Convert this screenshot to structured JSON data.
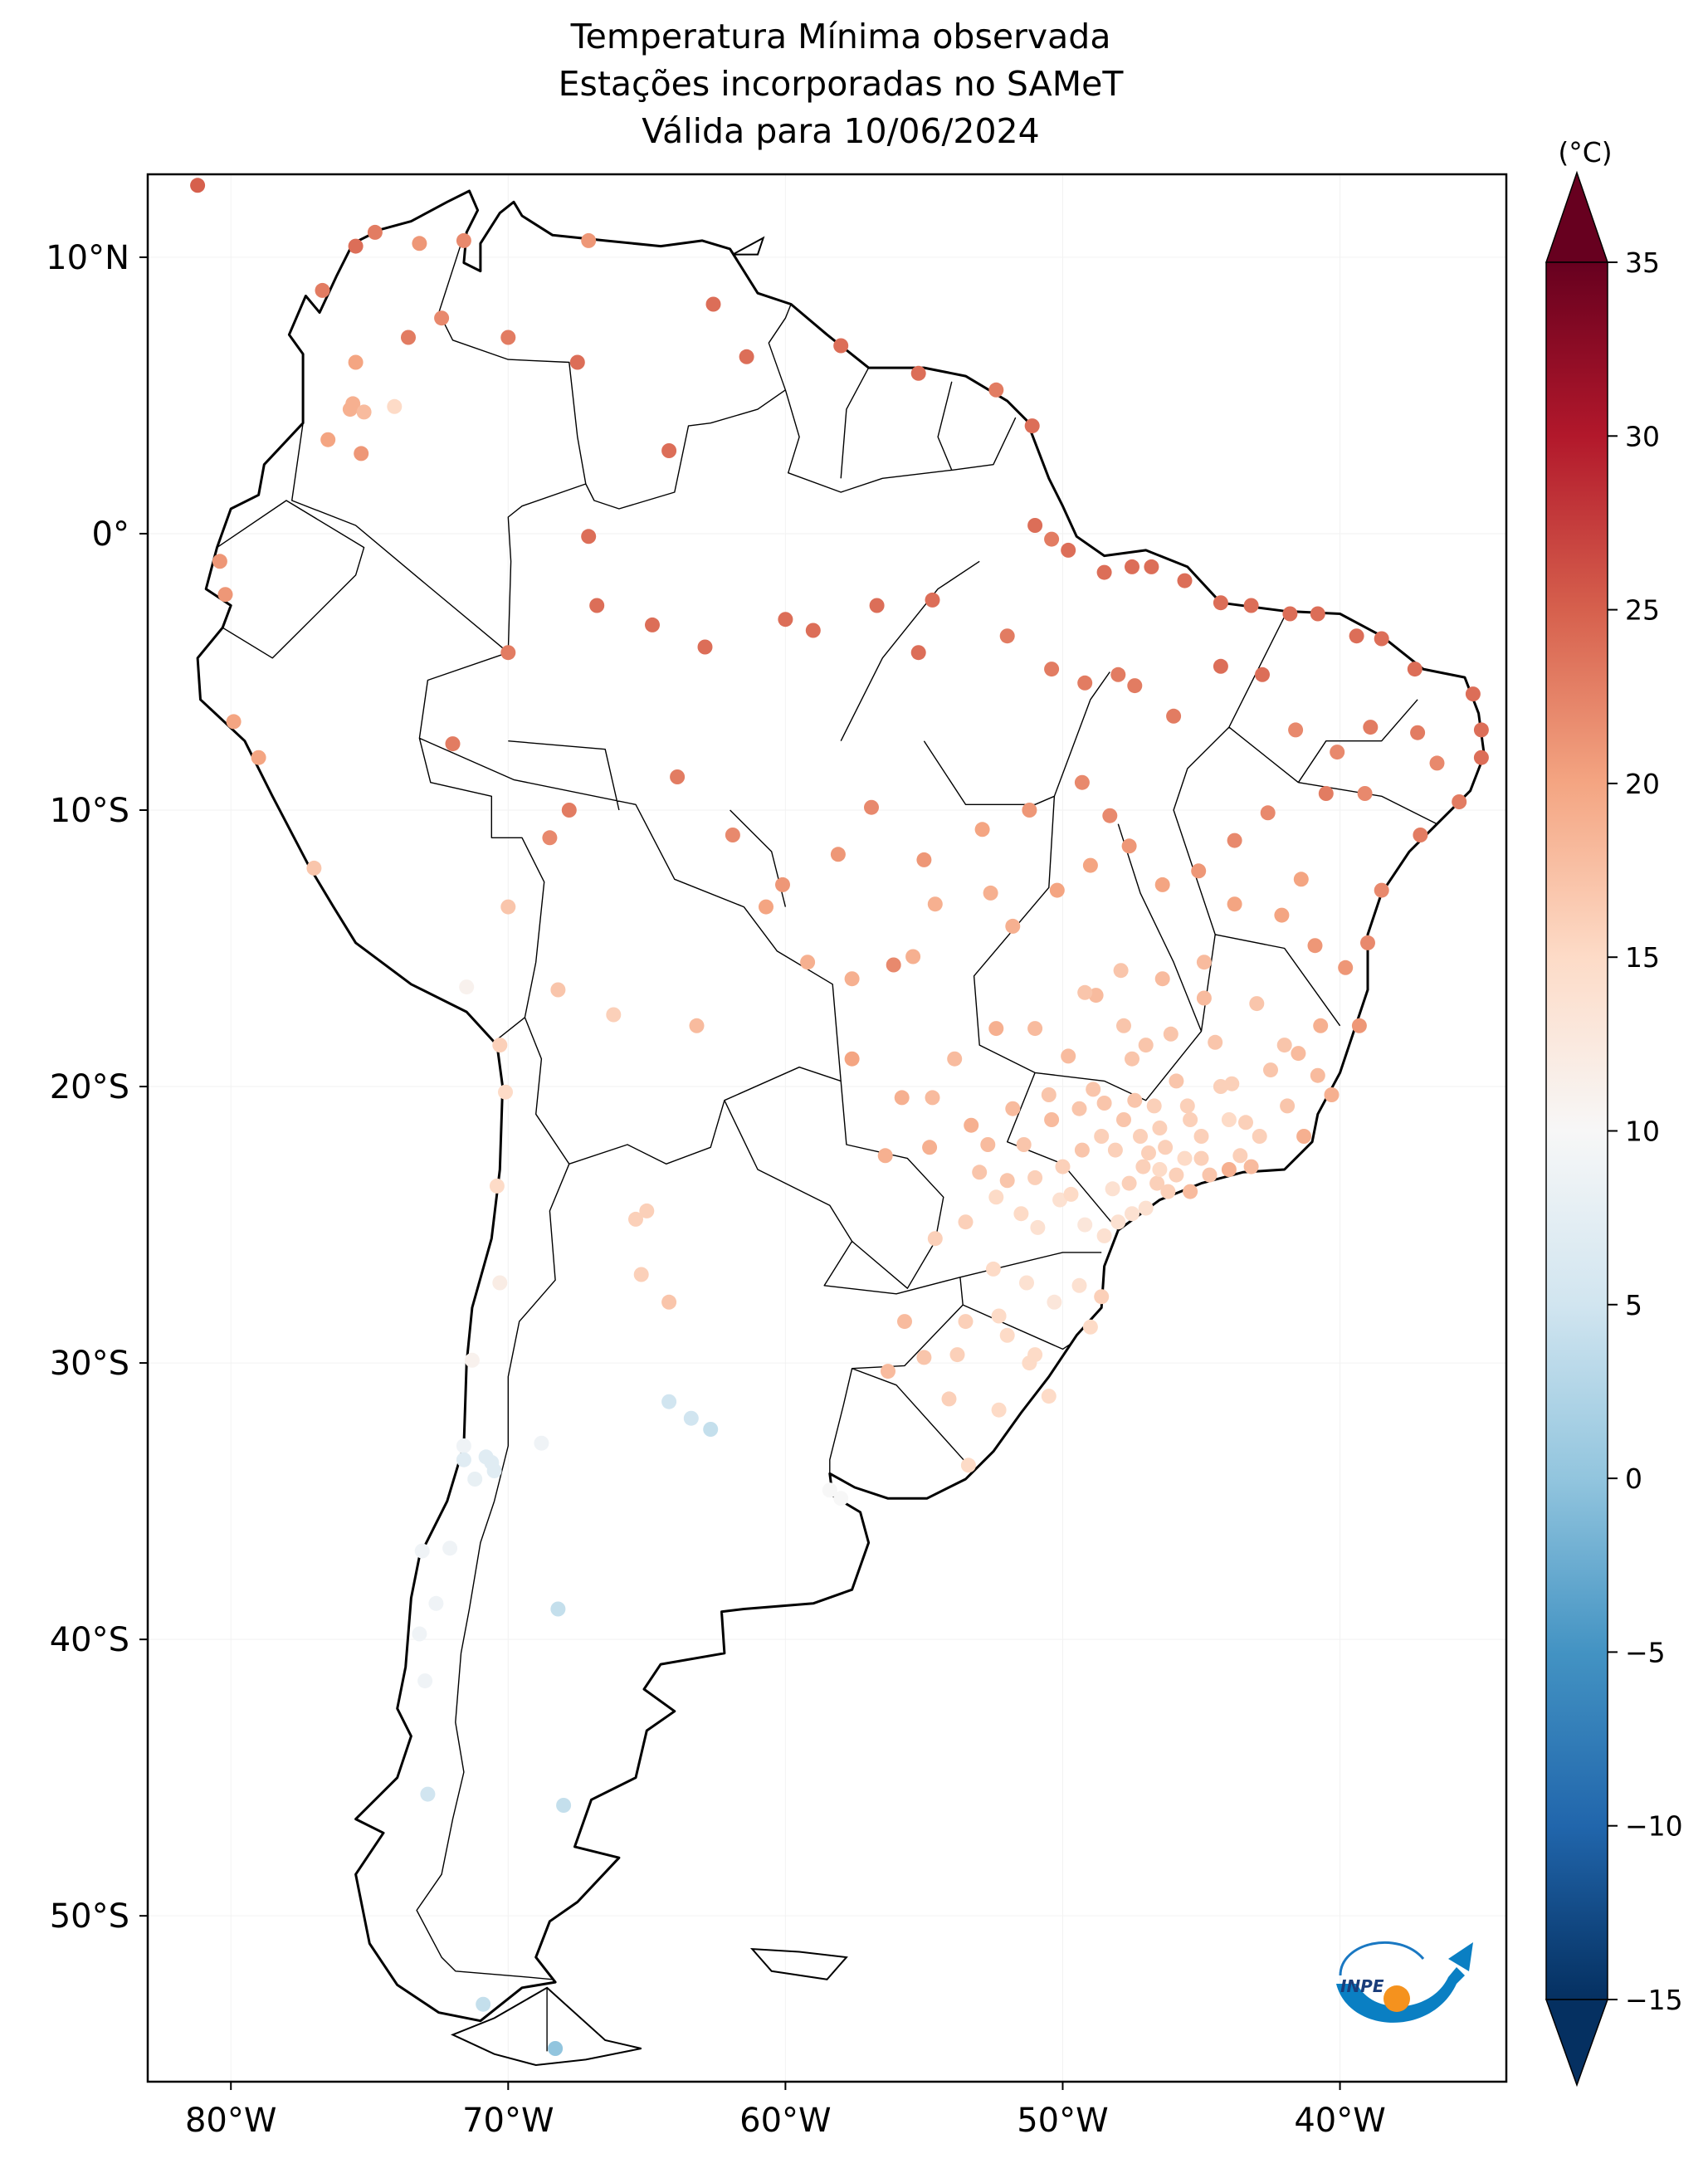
{
  "title": {
    "line1": "Temperatura Mínima observada",
    "line2": "Estações incorporadas no SAMeT",
    "line3": "Válida para 10/06/2024"
  },
  "map": {
    "lon_ticks": [
      {
        "lon": -80,
        "label": "80°W"
      },
      {
        "lon": -70,
        "label": "70°W"
      },
      {
        "lon": -60,
        "label": "60°W"
      },
      {
        "lon": -50,
        "label": "50°W"
      },
      {
        "lon": -40,
        "label": "40°W"
      }
    ],
    "lat_ticks": [
      {
        "lat": 10,
        "label": "10°N"
      },
      {
        "lat": 0,
        "label": "0°"
      },
      {
        "lat": -10,
        "label": "10°S"
      },
      {
        "lat": -20,
        "label": "20°S"
      },
      {
        "lat": -30,
        "label": "30°S"
      },
      {
        "lat": -40,
        "label": "40°S"
      },
      {
        "lat": -50,
        "label": "50°S"
      }
    ],
    "lon_range": [
      -83,
      -34
    ],
    "lat_range": [
      -56,
      13
    ]
  },
  "colorbar": {
    "unit": "(°C)",
    "min": -15,
    "max": 35,
    "extend": "both",
    "cmap": "RdBu_r",
    "ticks": [
      {
        "value": 35,
        "label": "35"
      },
      {
        "value": 30,
        "label": "30"
      },
      {
        "value": 25,
        "label": "25"
      },
      {
        "value": 20,
        "label": "20"
      },
      {
        "value": 15,
        "label": "15"
      },
      {
        "value": 10,
        "label": "10"
      },
      {
        "value": 5,
        "label": "5"
      },
      {
        "value": 0,
        "label": "0"
      },
      {
        "value": -5,
        "label": "−5"
      },
      {
        "value": -10,
        "label": "−10"
      },
      {
        "value": -15,
        "label": "−15"
      }
    ]
  },
  "logo": {
    "text": "INPE"
  },
  "chart_data": {
    "type": "scatter",
    "title": "Temperatura Mínima observada / Estações incorporadas no SAMeT / Válida para 10/06/2024",
    "x_unit": "longitude (°)",
    "y_unit": "latitude (°)",
    "value_unit": "°C",
    "points": [
      [
        -81.2,
        12.6,
        25
      ],
      [
        -75.5,
        10.4,
        24
      ],
      [
        -74.8,
        10.9,
        23
      ],
      [
        -73.2,
        10.5,
        21
      ],
      [
        -71.6,
        10.6,
        22
      ],
      [
        -67.1,
        10.6,
        21
      ],
      [
        -76.7,
        8.8,
        23
      ],
      [
        -73.6,
        7.1,
        23
      ],
      [
        -72.4,
        7.8,
        22
      ],
      [
        -70.0,
        7.1,
        23
      ],
      [
        -75.5,
        6.2,
        20
      ],
      [
        -75.6,
        4.7,
        19
      ],
      [
        -75.7,
        4.5,
        19
      ],
      [
        -75.2,
        4.4,
        18
      ],
      [
        -74.1,
        4.6,
        15
      ],
      [
        -76.5,
        3.4,
        20
      ],
      [
        -75.3,
        2.9,
        21
      ],
      [
        -67.5,
        6.2,
        24
      ],
      [
        -62.6,
        8.3,
        24
      ],
      [
        -61.4,
        6.4,
        24
      ],
      [
        -64.2,
        3.0,
        24
      ],
      [
        -58.0,
        6.8,
        24
      ],
      [
        -55.2,
        5.8,
        24
      ],
      [
        -52.4,
        5.2,
        23
      ],
      [
        -51.1,
        3.9,
        24
      ],
      [
        -51.0,
        0.3,
        24
      ],
      [
        -50.4,
        -0.2,
        23
      ],
      [
        -49.8,
        -0.6,
        24
      ],
      [
        -48.5,
        -1.4,
        24
      ],
      [
        -47.5,
        -1.2,
        24
      ],
      [
        -46.8,
        -1.2,
        24
      ],
      [
        -45.6,
        -1.7,
        24
      ],
      [
        -44.3,
        -2.5,
        24
      ],
      [
        -43.2,
        -2.6,
        24
      ],
      [
        -41.8,
        -2.9,
        24
      ],
      [
        -40.8,
        -2.9,
        24
      ],
      [
        -39.4,
        -3.7,
        24
      ],
      [
        -38.5,
        -3.8,
        24
      ],
      [
        -37.3,
        -4.9,
        24
      ],
      [
        -35.2,
        -5.8,
        24
      ],
      [
        -34.9,
        -7.1,
        24
      ],
      [
        -34.9,
        -8.1,
        24
      ],
      [
        -35.7,
        -9.7,
        23
      ],
      [
        -37.1,
        -10.9,
        23
      ],
      [
        -38.5,
        -12.9,
        22
      ],
      [
        -39.0,
        -14.8,
        22
      ],
      [
        -39.3,
        -17.8,
        21
      ],
      [
        -40.3,
        -20.3,
        19
      ],
      [
        -41.3,
        -21.8,
        19
      ],
      [
        -43.2,
        -22.9,
        18
      ],
      [
        -44.0,
        -23.0,
        19
      ],
      [
        -45.4,
        -23.8,
        18
      ],
      [
        -46.6,
        -23.5,
        16
      ],
      [
        -48.5,
        -25.4,
        14
      ],
      [
        -48.6,
        -27.6,
        16
      ],
      [
        -49.0,
        -28.7,
        15
      ],
      [
        -51.2,
        -30.0,
        15
      ],
      [
        -52.3,
        -31.7,
        15
      ],
      [
        -53.4,
        -33.7,
        15
      ],
      [
        -80.4,
        -1.0,
        21
      ],
      [
        -80.2,
        -2.2,
        21
      ],
      [
        -79.9,
        -6.8,
        20
      ],
      [
        -79.0,
        -8.1,
        20
      ],
      [
        -77.0,
        -12.1,
        17
      ],
      [
        -71.5,
        -16.4,
        11
      ],
      [
        -70.3,
        -18.5,
        16
      ],
      [
        -70.1,
        -20.2,
        15
      ],
      [
        -70.4,
        -23.6,
        15
      ],
      [
        -70.3,
        -27.1,
        12
      ],
      [
        -71.3,
        -29.9,
        11
      ],
      [
        -71.6,
        -33.0,
        9
      ],
      [
        -71.2,
        -34.2,
        8
      ],
      [
        -72.1,
        -36.7,
        9
      ],
      [
        -73.1,
        -36.8,
        9
      ],
      [
        -72.6,
        -38.7,
        9
      ],
      [
        -73.2,
        -39.8,
        9
      ],
      [
        -73.0,
        -41.5,
        9
      ],
      [
        -72.9,
        -45.6,
        5
      ],
      [
        -70.9,
        -53.2,
        4
      ],
      [
        -68.3,
        -54.8,
        0
      ],
      [
        -68.0,
        -46.0,
        4
      ],
      [
        -68.2,
        -38.9,
        4
      ],
      [
        -68.8,
        -32.9,
        9
      ],
      [
        -71.6,
        -33.5,
        7
      ],
      [
        -70.8,
        -33.4,
        7
      ],
      [
        -70.6,
        -33.6,
        7
      ],
      [
        -70.5,
        -33.9,
        7
      ],
      [
        -64.2,
        -31.4,
        5
      ],
      [
        -63.4,
        -32.0,
        5
      ],
      [
        -62.7,
        -32.4,
        4
      ],
      [
        -58.4,
        -34.6,
        10
      ],
      [
        -58.0,
        -34.9,
        10
      ],
      [
        -64.2,
        -27.8,
        17
      ],
      [
        -65.2,
        -26.8,
        16
      ],
      [
        -65.4,
        -24.8,
        16
      ],
      [
        -65.0,
        -24.5,
        16
      ],
      [
        -68.2,
        -16.5,
        17
      ],
      [
        -66.2,
        -17.4,
        16
      ],
      [
        -63.2,
        -17.8,
        18
      ],
      [
        -60.7,
        -13.5,
        20
      ],
      [
        -59.2,
        -15.5,
        19
      ],
      [
        -57.6,
        -16.1,
        19
      ],
      [
        -60.1,
        -12.7,
        21
      ],
      [
        -61.9,
        -10.9,
        22
      ],
      [
        -63.9,
        -8.8,
        23
      ],
      [
        -67.8,
        -10.0,
        23
      ],
      [
        -68.5,
        -11.0,
        22
      ],
      [
        -70.0,
        -13.5,
        17
      ],
      [
        -72.0,
        -7.6,
        23
      ],
      [
        -70.0,
        -4.3,
        23
      ],
      [
        -67.1,
        -0.1,
        24
      ],
      [
        -66.8,
        -2.6,
        24
      ],
      [
        -64.8,
        -3.3,
        24
      ],
      [
        -62.9,
        -4.1,
        24
      ],
      [
        -60.0,
        -3.1,
        24
      ],
      [
        -59.0,
        -3.5,
        24
      ],
      [
        -56.7,
        -2.6,
        24
      ],
      [
        -54.7,
        -2.4,
        24
      ],
      [
        -55.2,
        -4.3,
        24
      ],
      [
        -52.0,
        -3.7,
        23
      ],
      [
        -50.4,
        -4.9,
        23
      ],
      [
        -49.2,
        -5.4,
        23
      ],
      [
        -48.0,
        -5.1,
        23
      ],
      [
        -47.4,
        -5.5,
        23
      ],
      [
        -46.0,
        -6.6,
        23
      ],
      [
        -44.3,
        -4.8,
        24
      ],
      [
        -42.8,
        -5.1,
        24
      ],
      [
        -41.6,
        -7.1,
        22
      ],
      [
        -40.1,
        -7.9,
        22
      ],
      [
        -38.9,
        -7.0,
        23
      ],
      [
        -37.2,
        -7.2,
        23
      ],
      [
        -36.5,
        -8.3,
        22
      ],
      [
        -39.1,
        -9.4,
        22
      ],
      [
        -40.5,
        -9.4,
        23
      ],
      [
        -42.6,
        -10.1,
        22
      ],
      [
        -43.8,
        -11.1,
        22
      ],
      [
        -45.1,
        -12.2,
        21
      ],
      [
        -46.4,
        -12.7,
        20
      ],
      [
        -47.6,
        -11.3,
        21
      ],
      [
        -48.3,
        -10.2,
        22
      ],
      [
        -49.0,
        -12.0,
        20
      ],
      [
        -50.2,
        -12.9,
        20
      ],
      [
        -51.8,
        -14.2,
        19
      ],
      [
        -52.6,
        -13.0,
        19
      ],
      [
        -54.6,
        -13.4,
        19
      ],
      [
        -55.4,
        -15.3,
        19
      ],
      [
        -56.1,
        -15.6,
        22
      ],
      [
        -58.1,
        -11.6,
        21
      ],
      [
        -56.9,
        -9.9,
        22
      ],
      [
        -55.0,
        -11.8,
        21
      ],
      [
        -52.9,
        -10.7,
        20
      ],
      [
        -51.2,
        -10.0,
        21
      ],
      [
        -49.3,
        -9.0,
        22
      ],
      [
        -48.8,
        -16.7,
        18
      ],
      [
        -47.9,
        -15.8,
        17
      ],
      [
        -49.2,
        -16.6,
        17
      ],
      [
        -51.0,
        -17.9,
        18
      ],
      [
        -52.4,
        -17.9,
        19
      ],
      [
        -53.9,
        -19.0,
        18
      ],
      [
        -54.7,
        -20.4,
        18
      ],
      [
        -55.8,
        -20.4,
        19
      ],
      [
        -57.6,
        -19.0,
        20
      ],
      [
        -56.4,
        -22.5,
        19
      ],
      [
        -54.8,
        -22.2,
        19
      ],
      [
        -53.3,
        -21.4,
        19
      ],
      [
        -52.7,
        -22.1,
        18
      ],
      [
        -51.4,
        -22.1,
        17
      ],
      [
        -50.4,
        -21.2,
        18
      ],
      [
        -49.4,
        -20.8,
        17
      ],
      [
        -48.5,
        -20.6,
        17
      ],
      [
        -47.4,
        -20.5,
        17
      ],
      [
        -46.5,
        -21.5,
        16
      ],
      [
        -45.4,
        -21.2,
        16
      ],
      [
        -44.3,
        -20.0,
        16
      ],
      [
        -43.9,
        -19.9,
        16
      ],
      [
        -42.5,
        -19.4,
        17
      ],
      [
        -41.5,
        -18.8,
        18
      ],
      [
        -43.0,
        -17.0,
        17
      ],
      [
        -44.9,
        -15.5,
        18
      ],
      [
        -43.8,
        -13.4,
        20
      ],
      [
        -42.1,
        -13.8,
        20
      ],
      [
        -40.9,
        -14.9,
        21
      ],
      [
        -39.8,
        -15.7,
        21
      ],
      [
        -41.4,
        -12.5,
        20
      ],
      [
        -50.9,
        -25.1,
        14
      ],
      [
        -51.5,
        -24.6,
        15
      ],
      [
        -52.4,
        -24.0,
        15
      ],
      [
        -53.5,
        -24.9,
        16
      ],
      [
        -54.6,
        -25.5,
        16
      ],
      [
        -52.5,
        -26.6,
        15
      ],
      [
        -51.3,
        -27.1,
        14
      ],
      [
        -50.3,
        -27.8,
        13
      ],
      [
        -49.4,
        -27.2,
        14
      ],
      [
        -52.3,
        -28.3,
        15
      ],
      [
        -53.8,
        -29.7,
        16
      ],
      [
        -55.0,
        -29.8,
        17
      ],
      [
        -56.3,
        -30.3,
        18
      ],
      [
        -54.1,
        -31.3,
        16
      ],
      [
        -52.0,
        -29.0,
        15
      ],
      [
        -51.0,
        -29.7,
        15
      ],
      [
        -50.5,
        -31.2,
        15
      ],
      [
        -55.7,
        -28.5,
        18
      ],
      [
        -53.5,
        -28.5,
        16
      ],
      [
        -47.1,
        -22.9,
        16
      ],
      [
        -47.8,
        -21.2,
        17
      ],
      [
        -46.5,
        -23.0,
        15
      ],
      [
        -45.9,
        -23.2,
        16
      ],
      [
        -45.0,
        -22.6,
        16
      ],
      [
        -47.6,
        -23.5,
        16
      ],
      [
        -48.1,
        -22.3,
        16
      ],
      [
        -49.3,
        -22.3,
        17
      ],
      [
        -50.0,
        -22.9,
        16
      ],
      [
        -51.0,
        -23.3,
        16
      ],
      [
        -52.0,
        -23.4,
        17
      ],
      [
        -53.0,
        -23.1,
        17
      ],
      [
        -47.0,
        -24.4,
        14
      ],
      [
        -50.1,
        -24.1,
        14
      ],
      [
        -49.7,
        -23.9,
        15
      ],
      [
        -49.2,
        -25.0,
        13
      ],
      [
        -48.0,
        -24.9,
        14
      ],
      [
        -47.5,
        -24.6,
        14
      ],
      [
        -46.3,
        -22.2,
        16
      ],
      [
        -45.0,
        -21.8,
        16
      ],
      [
        -44.0,
        -21.2,
        15
      ],
      [
        -42.9,
        -21.8,
        16
      ],
      [
        -40.8,
        -19.6,
        18
      ],
      [
        -41.9,
        -20.7,
        17
      ],
      [
        -43.4,
        -21.3,
        16
      ],
      [
        -42.0,
        -18.5,
        17
      ],
      [
        -40.7,
        -17.8,
        19
      ],
      [
        -44.5,
        -18.4,
        17
      ],
      [
        -46.1,
        -18.1,
        17
      ],
      [
        -47.5,
        -19.0,
        17
      ],
      [
        -45.9,
        -19.8,
        17
      ],
      [
        -44.9,
        -16.8,
        18
      ],
      [
        -46.4,
        -16.1,
        18
      ],
      [
        -47.8,
        -17.8,
        17
      ],
      [
        -49.8,
        -18.9,
        18
      ],
      [
        -48.2,
        -23.7,
        14
      ],
      [
        -46.9,
        -22.4,
        16
      ],
      [
        -45.6,
        -22.6,
        15
      ],
      [
        -48.6,
        -21.8,
        16
      ],
      [
        -50.5,
        -20.3,
        17
      ],
      [
        -51.8,
        -20.8,
        18
      ],
      [
        -46.7,
        -20.7,
        16
      ],
      [
        -48.9,
        -20.1,
        17
      ],
      [
        -47.0,
        -18.5,
        17
      ],
      [
        -45.5,
        -20.7,
        16
      ],
      [
        -43.6,
        -22.5,
        16
      ],
      [
        -44.7,
        -23.2,
        17
      ],
      [
        -46.2,
        -23.8,
        16
      ],
      [
        -47.2,
        -21.8,
        16
      ]
    ]
  }
}
